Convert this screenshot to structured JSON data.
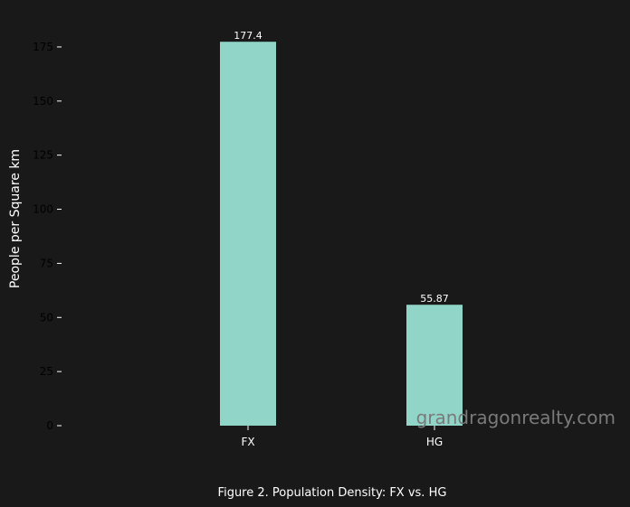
{
  "chart_data": {
    "type": "bar",
    "categories": [
      "FX",
      "HG"
    ],
    "values": [
      177.4,
      55.87
    ],
    "value_labels": [
      "177.4",
      "55.87"
    ],
    "title": "",
    "xlabel": "",
    "ylabel": "People per Square km",
    "ylim": [
      0,
      185
    ],
    "yticks": [
      0,
      25,
      50,
      75,
      100,
      125,
      150,
      175
    ],
    "ytick_labels": [
      "0",
      "25",
      "50",
      "75",
      "100",
      "125",
      "150",
      "175"
    ],
    "grid": false,
    "legend": "none",
    "caption": "Figure 2. Population Density: FX vs. HG",
    "watermark": "grandragonrealty.com",
    "colors": {
      "background": "#191919",
      "bar": "#91d5c8",
      "text": "#ffffff",
      "ytick_text": "#000000",
      "watermark": "#7a7a7a"
    }
  }
}
